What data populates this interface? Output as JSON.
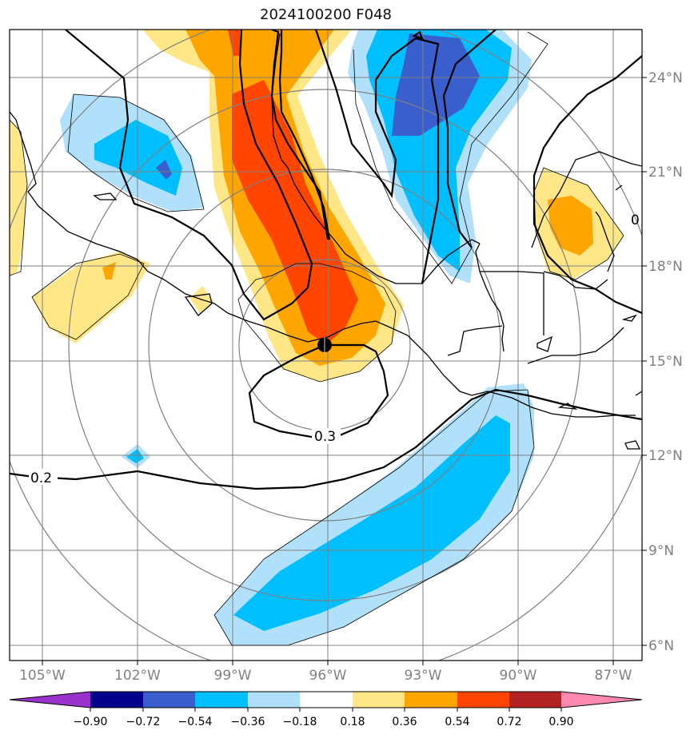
{
  "title": "2024100200 F048",
  "map": {
    "lon_range": [
      -106,
      -86
    ],
    "lat_range": [
      5.5,
      25.5
    ],
    "lon_ticks": [
      {
        "value": -105,
        "label": "105°W"
      },
      {
        "value": -102,
        "label": "102°W"
      },
      {
        "value": -99,
        "label": "99°W"
      },
      {
        "value": -96,
        "label": "96°W"
      },
      {
        "value": -93,
        "label": "93°W"
      },
      {
        "value": -90,
        "label": "90°W"
      },
      {
        "value": -87,
        "label": "87°W"
      }
    ],
    "lat_ticks": [
      {
        "value": 24,
        "label": "24°N"
      },
      {
        "value": 21,
        "label": "21°N"
      },
      {
        "value": 18,
        "label": "18°N"
      },
      {
        "value": 15,
        "label": "15°N"
      },
      {
        "value": 12,
        "label": "12°N"
      },
      {
        "value": 9,
        "label": "9°N"
      },
      {
        "value": 6,
        "label": "6°N"
      }
    ],
    "center_marker": {
      "lon": -96,
      "lat": 15.5
    },
    "contour_labels": [
      "0.3",
      "0.2",
      "0"
    ]
  },
  "colorbar": {
    "ticks": [
      "−0.90",
      "−0.72",
      "−0.54",
      "−0.36",
      "−0.18",
      "0.18",
      "0.36",
      "0.54",
      "0.72",
      "0.90"
    ],
    "colors": [
      "#9932cc",
      "#00008b",
      "#3a5fcd",
      "#00bfff",
      "#b0e0fa",
      "#ffffff",
      "#ffe787",
      "#ffa500",
      "#ff4500",
      "#b22222",
      "#ff88b0"
    ]
  },
  "colors": {
    "light_yellow": "#ffe787",
    "orange": "#ffa500",
    "red_orange": "#ff4500",
    "light_blue": "#b0e0fa",
    "blue": "#00bfff",
    "royal_blue": "#3a5fcd"
  }
}
